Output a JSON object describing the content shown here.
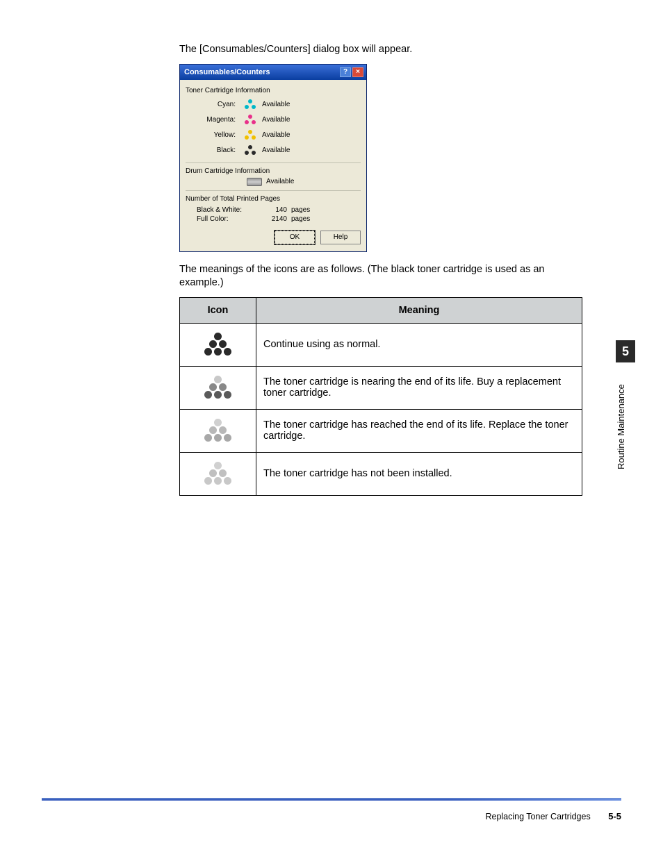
{
  "intro_line": "The [Consumables/Counters] dialog box will appear.",
  "dialog": {
    "title": "Consumables/Counters",
    "help_btn": "?",
    "close_btn": "×",
    "toner_section": "Toner Cartridge Information",
    "rows": [
      {
        "label": "Cyan:",
        "color": "#00b8c8",
        "status": "Available"
      },
      {
        "label": "Magenta:",
        "color": "#e8308a",
        "status": "Available"
      },
      {
        "label": "Yellow:",
        "color": "#f0c000",
        "status": "Available"
      },
      {
        "label": "Black:",
        "color": "#2a2a2a",
        "status": "Available"
      }
    ],
    "drum_section": "Drum Cartridge Information",
    "drum_status": "Available",
    "count_section": "Number of Total Printed Pages",
    "bw_label": "Black & White:",
    "bw_value": "140",
    "bw_unit": "pages",
    "color_label": "Full Color:",
    "color_value": "2140",
    "color_unit": "pages",
    "ok": "OK",
    "help": "Help"
  },
  "meanings_intro": "The meanings of the icons are as follows. (The black toner cartridge is used as an example.)",
  "table": {
    "headers": {
      "icon": "Icon",
      "meaning": "Meaning"
    },
    "rows": [
      {
        "colors": {
          "r1": "#2a2a2a",
          "r2": "#2a2a2a",
          "r3": "#2a2a2a"
        },
        "meaning": "Continue using as normal."
      },
      {
        "colors": {
          "r1": "#c8c8c8",
          "r2": "#888888",
          "r3": "#5a5a5a"
        },
        "meaning": "The toner cartridge is nearing the end of its life. Buy a replacement toner cartridge."
      },
      {
        "colors": {
          "r1": "#d0d0d0",
          "r2": "#b8b8b8",
          "r3": "#a8a8a8"
        },
        "meaning": "The toner cartridge has reached the end of its life. Replace the toner cartridge."
      },
      {
        "colors": {
          "r1": "#d0d0d0",
          "r2": "#c0c0c0",
          "r3": "#c8c8c8"
        },
        "meaning": "The toner cartridge has not been installed."
      }
    ]
  },
  "side": {
    "number": "5",
    "label": "Routine Maintenance"
  },
  "footer": {
    "section": "Replacing Toner Cartridges",
    "page": "5-5"
  }
}
